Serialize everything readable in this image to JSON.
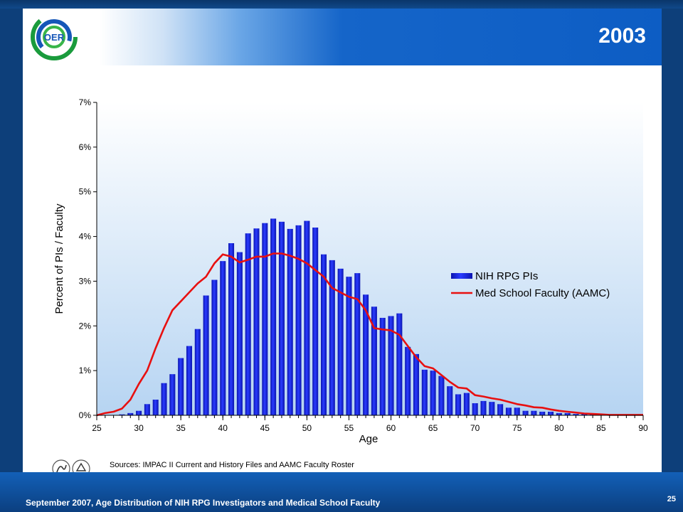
{
  "slide": {
    "title": "2003",
    "logo_text": "OER"
  },
  "sources": "Sources:  IMPAC II Current  and History Files and AAMC Faculty Roster",
  "footer": {
    "text": "September 2007, Age Distribution of NIH RPG Investigators and Medical School Faculty",
    "page_number": "25"
  },
  "colors": {
    "bar": "#1f2dff",
    "line": "#e81010",
    "plot_bg_top": "#ffffff",
    "plot_bg_bottom": "#b6d4f2"
  },
  "chart_data": {
    "type": "bar",
    "title": "",
    "xlabel": "Age",
    "ylabel": "Percent of PIs / Faculty",
    "xlim": [
      25,
      90
    ],
    "ylim": [
      0,
      7
    ],
    "x_ticks": [
      25,
      30,
      35,
      40,
      45,
      50,
      55,
      60,
      65,
      70,
      75,
      80,
      85,
      90
    ],
    "y_ticks": [
      0,
      1,
      2,
      3,
      4,
      5,
      6,
      7
    ],
    "y_tick_labels": [
      "0%",
      "1%",
      "2%",
      "3%",
      "4%",
      "5%",
      "6%",
      "7%"
    ],
    "grid": false,
    "legend_position": "right",
    "series": [
      {
        "name": "NIH RPG PIs",
        "kind": "bar",
        "x": [
          26,
          27,
          28,
          29,
          30,
          31,
          32,
          33,
          34,
          35,
          36,
          37,
          38,
          39,
          40,
          41,
          42,
          43,
          44,
          45,
          46,
          47,
          48,
          49,
          50,
          51,
          52,
          53,
          54,
          55,
          56,
          57,
          58,
          59,
          60,
          61,
          62,
          63,
          64,
          65,
          66,
          67,
          68,
          69,
          70,
          71,
          72,
          73,
          74,
          75,
          76,
          77,
          78,
          79,
          80,
          81,
          82,
          83,
          84,
          85,
          86,
          87,
          88,
          89
        ],
        "values": [
          0,
          0,
          0.02,
          0.05,
          0.1,
          0.25,
          0.35,
          0.72,
          0.92,
          1.28,
          1.55,
          1.93,
          2.68,
          3.03,
          3.45,
          3.85,
          3.65,
          4.07,
          4.18,
          4.3,
          4.4,
          4.33,
          4.17,
          4.25,
          4.35,
          4.2,
          3.6,
          3.47,
          3.28,
          3.1,
          3.18,
          2.7,
          2.43,
          2.18,
          2.22,
          2.28,
          1.53,
          1.37,
          1.02,
          1.0,
          0.88,
          0.65,
          0.47,
          0.5,
          0.27,
          0.32,
          0.3,
          0.25,
          0.17,
          0.17,
          0.1,
          0.1,
          0.08,
          0.08,
          0.05,
          0.05,
          0.03,
          0.03,
          0.02,
          0.02,
          0.01,
          0.01,
          0.01,
          0.01
        ]
      },
      {
        "name": "Med School Faculty (AAMC)",
        "kind": "line",
        "x": [
          25,
          26,
          27,
          28,
          29,
          30,
          31,
          32,
          33,
          34,
          35,
          36,
          37,
          38,
          39,
          40,
          41,
          42,
          43,
          44,
          45,
          46,
          47,
          48,
          49,
          50,
          51,
          52,
          53,
          54,
          55,
          56,
          57,
          58,
          59,
          60,
          61,
          62,
          63,
          64,
          65,
          66,
          67,
          68,
          69,
          70,
          71,
          72,
          73,
          74,
          75,
          76,
          77,
          78,
          79,
          80,
          81,
          82,
          83,
          84,
          85,
          86,
          87,
          88,
          89,
          90
        ],
        "values": [
          0,
          0.05,
          0.08,
          0.15,
          0.35,
          0.7,
          1.0,
          1.5,
          1.95,
          2.35,
          2.55,
          2.75,
          2.95,
          3.1,
          3.4,
          3.6,
          3.55,
          3.42,
          3.48,
          3.55,
          3.55,
          3.62,
          3.62,
          3.57,
          3.5,
          3.4,
          3.25,
          3.1,
          2.85,
          2.75,
          2.65,
          2.6,
          2.35,
          1.95,
          1.92,
          1.9,
          1.8,
          1.55,
          1.3,
          1.1,
          1.05,
          0.9,
          0.75,
          0.62,
          0.6,
          0.45,
          0.42,
          0.38,
          0.35,
          0.3,
          0.25,
          0.22,
          0.18,
          0.17,
          0.13,
          0.1,
          0.08,
          0.06,
          0.04,
          0.03,
          0.02,
          0.01,
          0.01,
          0.01,
          0.01,
          0.01
        ]
      }
    ]
  }
}
